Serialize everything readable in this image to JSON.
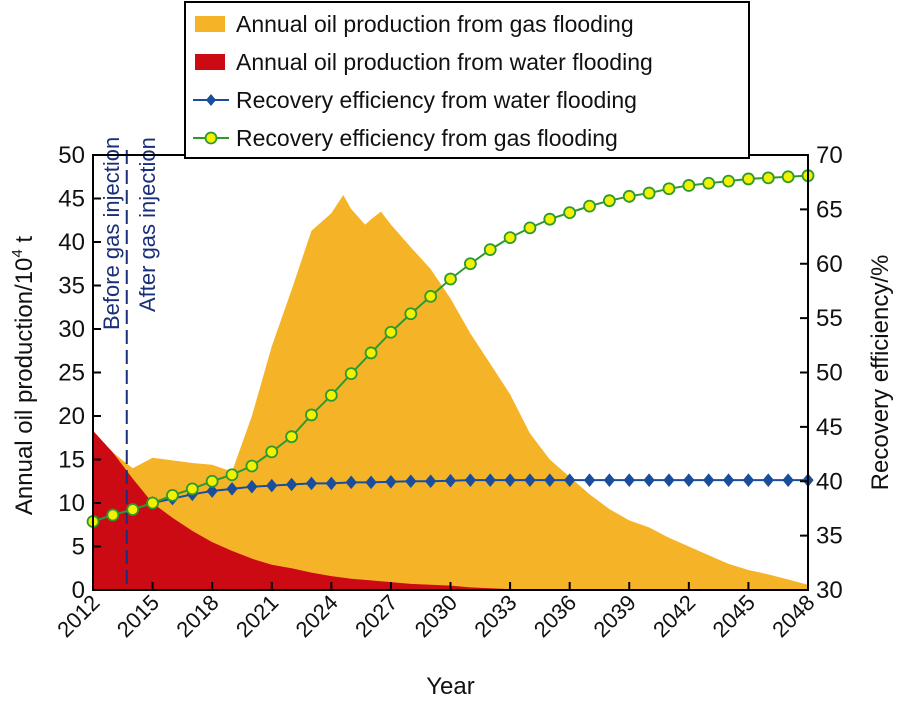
{
  "chart_data": {
    "type": "area",
    "xlabel": "Year",
    "ylabel_left": "Annual oil production/10",
    "ylabel_left_sup": "4",
    "ylabel_left_unit": " t",
    "ylabel_right": "Recovery efficiency/%",
    "xlim": [
      2012,
      2048
    ],
    "ylim_left": [
      0,
      50
    ],
    "ylim_right": [
      30,
      70
    ],
    "x_ticks": [
      2012,
      2015,
      2018,
      2021,
      2024,
      2027,
      2030,
      2033,
      2036,
      2039,
      2042,
      2045,
      2048
    ],
    "y_ticks_left": [
      0,
      5,
      10,
      15,
      20,
      25,
      30,
      35,
      40,
      45,
      50
    ],
    "y_ticks_right": [
      30,
      35,
      40,
      45,
      50,
      55,
      60,
      65,
      70
    ],
    "grid": false,
    "legend_position": "top-center",
    "annotation": {
      "x": 2013.7,
      "before_label": "Before gas injection",
      "after_label": "After gas injection"
    },
    "series": [
      {
        "name": "Annual oil production from gas flooding",
        "kind": "area",
        "axis": "left",
        "color": "#F5B427",
        "x": [
          2012,
          2013,
          2014,
          2015,
          2016,
          2017,
          2018,
          2018.5,
          2019,
          2020,
          2021,
          2022,
          2023,
          2024,
          2024.6,
          2025,
          2025.7,
          2026,
          2026.5,
          2027,
          2028,
          2029,
          2030,
          2031,
          2032,
          2033,
          2034,
          2035,
          2036,
          2037,
          2038,
          2039,
          2040,
          2041,
          2042,
          2043,
          2044,
          2045,
          2046,
          2047,
          2048
        ],
        "values": [
          18.3,
          15.8,
          14,
          15.2,
          14.9,
          14.6,
          14.4,
          14,
          13.6,
          20,
          28,
          34.5,
          41.3,
          43.3,
          45.4,
          43.8,
          42,
          42.6,
          43.5,
          42,
          39.4,
          36.9,
          33.5,
          29.5,
          26,
          22.5,
          18,
          15,
          13,
          11,
          9.3,
          8,
          7.2,
          6,
          5,
          4,
          3,
          2.3,
          1.8,
          1.2,
          0.6
        ]
      },
      {
        "name": "Annual oil production from water flooding",
        "kind": "area",
        "axis": "left",
        "color": "#CC0A14",
        "x": [
          2012,
          2013,
          2014,
          2015,
          2016,
          2017,
          2018,
          2019,
          2020,
          2021,
          2022,
          2023,
          2024,
          2025,
          2026,
          2027,
          2028,
          2029,
          2030,
          2031,
          2032,
          2033,
          2034
        ],
        "values": [
          18.3,
          15.8,
          12.8,
          10,
          8.3,
          6.8,
          5.5,
          4.5,
          3.6,
          2.9,
          2.5,
          2,
          1.6,
          1.3,
          1.1,
          0.9,
          0.7,
          0.6,
          0.5,
          0.3,
          0.2,
          0.1,
          0
        ]
      },
      {
        "name": "Recovery efficiency from water flooding",
        "kind": "line",
        "axis": "right",
        "color": "#1A4E9C",
        "marker": "diamond",
        "x": [
          2012,
          2013,
          2014,
          2015,
          2016,
          2017,
          2018,
          2019,
          2020,
          2021,
          2022,
          2023,
          2024,
          2025,
          2026,
          2027,
          2028,
          2029,
          2030,
          2031,
          2032,
          2033,
          2034,
          2035,
          2036,
          2037,
          2038,
          2039,
          2040,
          2041,
          2042,
          2043,
          2044,
          2045,
          2046,
          2047,
          2048
        ],
        "values": [
          36.3,
          36.9,
          37.4,
          38,
          38.4,
          38.8,
          39.1,
          39.3,
          39.5,
          39.6,
          39.7,
          39.8,
          39.8,
          39.9,
          39.9,
          39.95,
          40,
          40,
          40.05,
          40.1,
          40.1,
          40.1,
          40.1,
          40.1,
          40.1,
          40.1,
          40.1,
          40.1,
          40.1,
          40.1,
          40.1,
          40.1,
          40.1,
          40.1,
          40.1,
          40.1,
          40.1
        ]
      },
      {
        "name": "Recovery efficiency from gas flooding",
        "kind": "line",
        "axis": "right",
        "color": "#2E9A2E",
        "marker": "circle",
        "marker_fill": "#F2F200",
        "x": [
          2012,
          2013,
          2014,
          2015,
          2016,
          2017,
          2018,
          2019,
          2020,
          2021,
          2022,
          2023,
          2024,
          2025,
          2026,
          2027,
          2028,
          2029,
          2030,
          2031,
          2032,
          2033,
          2034,
          2035,
          2036,
          2037,
          2038,
          2039,
          2040,
          2041,
          2042,
          2043,
          2044,
          2045,
          2046,
          2047,
          2048
        ],
        "values": [
          36.3,
          36.9,
          37.4,
          38,
          38.7,
          39.3,
          40,
          40.6,
          41.4,
          42.7,
          44.1,
          46.1,
          47.9,
          49.9,
          51.8,
          53.7,
          55.4,
          57,
          58.6,
          60,
          61.3,
          62.4,
          63.3,
          64.1,
          64.7,
          65.3,
          65.8,
          66.2,
          66.5,
          66.9,
          67.2,
          67.4,
          67.6,
          67.8,
          67.9,
          68,
          68.1
        ]
      }
    ]
  }
}
